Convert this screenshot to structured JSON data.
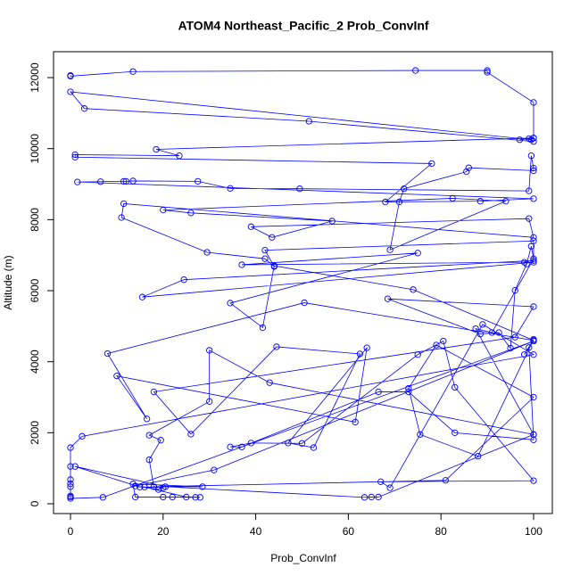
{
  "chart_data": {
    "type": "line",
    "title": "ATOM4 Northeast_Pacific_2 Prob_ConvInf",
    "xlabel": "Prob_ConvInf",
    "ylabel": "Altitude (m)",
    "color": "#0000ff",
    "markers": true,
    "xlim": [
      -3.66,
      104.05
    ],
    "ylim": [
      -276,
      12729
    ],
    "xticks": [
      0,
      20,
      40,
      60,
      80,
      100
    ],
    "yticks": [
      0,
      2000,
      4000,
      6000,
      8000,
      10000,
      12000
    ],
    "x": [
      0,
      0,
      13.5,
      74.5,
      90,
      90,
      100,
      100,
      99.5,
      0,
      3,
      51.5,
      100,
      99,
      97,
      100,
      18.5,
      23.5,
      1,
      1,
      78,
      68,
      88.5,
      100,
      1.5,
      6.5,
      11.5,
      12,
      13.5,
      27.5,
      34.5,
      49.5,
      99,
      99.5,
      100,
      100,
      86,
      85.5,
      72,
      71,
      69,
      94,
      82.5,
      20,
      26,
      56.5,
      43.5,
      39,
      99,
      100,
      11.5,
      11,
      29.5,
      42,
      44,
      42,
      100,
      100,
      24.5,
      15.5,
      100,
      98,
      37,
      75,
      34.5,
      41.5,
      44,
      74,
      100,
      50.5,
      8,
      16.5,
      10,
      61.5,
      64,
      47,
      52.5,
      62.5,
      44.5,
      26,
      18,
      96,
      100,
      68.5,
      88.5,
      92.5,
      95,
      96,
      98.5,
      99.5,
      100,
      91,
      87.5,
      100,
      43,
      30,
      30,
      17,
      19.5,
      17,
      18,
      81,
      100,
      79,
      73,
      75.5,
      88,
      100,
      98,
      99,
      100,
      83,
      73,
      66.5,
      37,
      34.5,
      39,
      50,
      75,
      80.5,
      83,
      100,
      67,
      69,
      89,
      100,
      2.5,
      0,
      0,
      0,
      0,
      0,
      0,
      0,
      0,
      7,
      100,
      31,
      14,
      19,
      20,
      16,
      25,
      28,
      27,
      22,
      20,
      14,
      13.5,
      28.5,
      15,
      1,
      20.5,
      63.5,
      65,
      66.5,
      100
    ],
    "values": [
      12060,
      12040,
      12170,
      12200,
      12200,
      12150,
      11300,
      10300,
      10250,
      11600,
      11130,
      10770,
      10200,
      10280,
      10250,
      10300,
      9980,
      9800,
      9830,
      9760,
      9580,
      8500,
      8520,
      8590,
      9060,
      9070,
      9080,
      9080,
      9090,
      9080,
      8880,
      8870,
      8810,
      9800,
      9450,
      9380,
      9460,
      9350,
      8870,
      8500,
      7150,
      8520,
      8600,
      8270,
      8190,
      7960,
      7500,
      7800,
      8030,
      7500,
      8450,
      8060,
      7080,
      6900,
      6680,
      7140,
      7400,
      6850,
      6310,
      5820,
      6800,
      6800,
      6730,
      7060,
      5650,
      4960,
      6700,
      6030,
      4600,
      5660,
      4230,
      2390,
      3600,
      2300,
      4390,
      1710,
      1580,
      4220,
      4420,
      1960,
      3150,
      4690,
      5550,
      5770,
      4780,
      4820,
      4380,
      6010,
      6750,
      7250,
      6900,
      4820,
      4930,
      1950,
      3410,
      4320,
      2880,
      1930,
      1790,
      1240,
      480,
      660,
      3000,
      4470,
      3250,
      1950,
      1340,
      4630,
      4200,
      4400,
      1800,
      2000,
      3150,
      3150,
      1600,
      1600,
      1710,
      1700,
      4200,
      4580,
      3280,
      650,
      620,
      450,
      5050,
      4200,
      1900,
      1580,
      1050,
      680,
      560,
      480,
      220,
      190,
      150,
      180,
      4580,
      950,
      500,
      400,
      450,
      470,
      190,
      180,
      180,
      190,
      190,
      190,
      560,
      480,
      470,
      1050,
      480,
      180,
      190,
      190,
      1950
    ]
  }
}
